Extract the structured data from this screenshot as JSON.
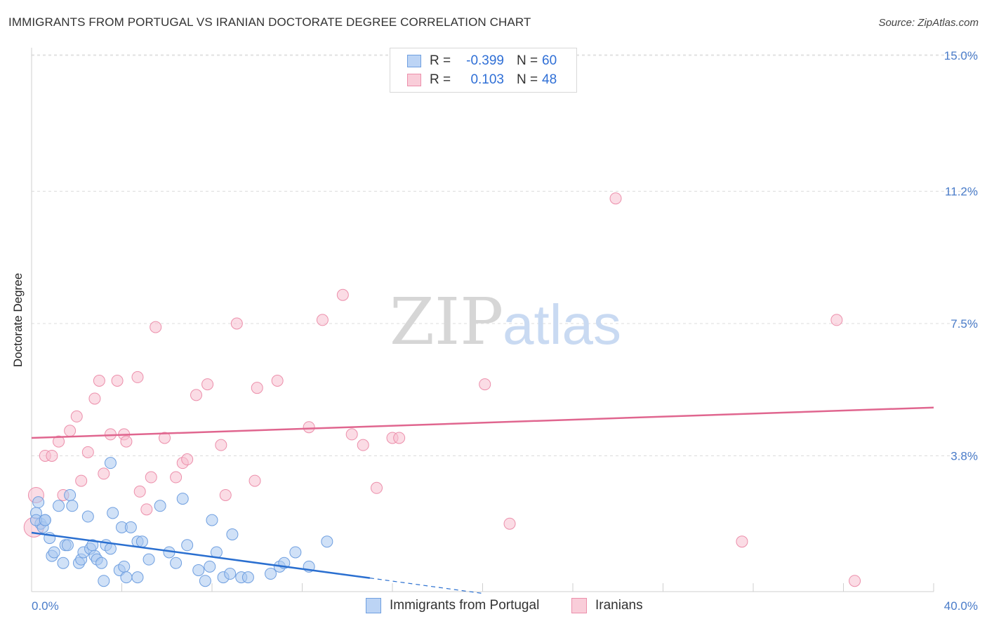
{
  "title": "IMMIGRANTS FROM PORTUGAL VS IRANIAN DOCTORATE DEGREE CORRELATION CHART",
  "source": "Source: ZipAtlas.com",
  "watermark": {
    "zip": "ZIP",
    "atlas": "atlas"
  },
  "legend": {
    "r_label": "R =",
    "n_label": "N =",
    "series1": {
      "r": "-0.399",
      "n": "60"
    },
    "series2": {
      "r": "0.103",
      "n": "48"
    }
  },
  "chart_data": {
    "type": "scatter",
    "title": "IMMIGRANTS FROM PORTUGAL VS IRANIAN DOCTORATE DEGREE CORRELATION CHART",
    "xlabel": "",
    "ylabel": "Doctorate Degree",
    "xlim": [
      0,
      40
    ],
    "ylim": [
      0,
      15.5
    ],
    "x_ticks": [
      {
        "value": 0,
        "label": "0.0%"
      },
      {
        "value": 40,
        "label": "40.0%"
      }
    ],
    "y_ticks": [
      {
        "value": 3.8,
        "label": "3.8%"
      },
      {
        "value": 7.5,
        "label": "7.5%"
      },
      {
        "value": 11.2,
        "label": "11.2%"
      },
      {
        "value": 15.0,
        "label": "15.0%"
      }
    ],
    "colors": {
      "blue_fill": "#aac8f0",
      "blue_stroke": "#6f9fe0",
      "blue_line": "#2a6fd0",
      "pink_fill": "#f7c0d0",
      "pink_stroke": "#ec8fab",
      "pink_line": "#e0668f"
    },
    "series": [
      {
        "name": "Immigrants from Portugal",
        "r": -0.399,
        "n": 60,
        "trend": {
          "x0": 0,
          "y0": 1.65,
          "x1": 15,
          "y1": 0.38,
          "dash_to_x": 20,
          "dash_to_y": -0.05
        },
        "points": [
          [
            0.2,
            2.2
          ],
          [
            0.3,
            2.5
          ],
          [
            0.4,
            1.9
          ],
          [
            0.5,
            1.8
          ],
          [
            0.6,
            2.0
          ],
          [
            0.8,
            1.5
          ],
          [
            0.9,
            1.0
          ],
          [
            1.0,
            1.1
          ],
          [
            1.2,
            2.4
          ],
          [
            1.4,
            0.8
          ],
          [
            1.5,
            1.3
          ],
          [
            1.6,
            1.3
          ],
          [
            1.7,
            2.7
          ],
          [
            1.8,
            2.4
          ],
          [
            2.1,
            0.8
          ],
          [
            2.2,
            0.9
          ],
          [
            2.3,
            1.1
          ],
          [
            2.5,
            2.1
          ],
          [
            2.6,
            1.2
          ],
          [
            2.7,
            1.3
          ],
          [
            2.8,
            1.0
          ],
          [
            2.9,
            0.9
          ],
          [
            3.1,
            0.8
          ],
          [
            3.2,
            0.3
          ],
          [
            3.3,
            1.3
          ],
          [
            3.5,
            1.2
          ],
          [
            3.5,
            3.6
          ],
          [
            3.6,
            2.2
          ],
          [
            3.9,
            0.6
          ],
          [
            4.0,
            1.8
          ],
          [
            4.1,
            0.7
          ],
          [
            4.2,
            0.4
          ],
          [
            4.4,
            1.8
          ],
          [
            4.7,
            0.4
          ],
          [
            4.7,
            1.4
          ],
          [
            4.9,
            1.4
          ],
          [
            5.2,
            0.9
          ],
          [
            5.7,
            2.4
          ],
          [
            6.1,
            1.1
          ],
          [
            6.4,
            0.8
          ],
          [
            6.7,
            2.6
          ],
          [
            6.9,
            1.3
          ],
          [
            7.4,
            0.6
          ],
          [
            7.7,
            0.3
          ],
          [
            7.9,
            0.7
          ],
          [
            8.0,
            2.0
          ],
          [
            8.2,
            1.1
          ],
          [
            8.5,
            0.4
          ],
          [
            8.8,
            0.5
          ],
          [
            8.9,
            1.6
          ],
          [
            9.3,
            0.4
          ],
          [
            9.6,
            0.4
          ],
          [
            10.6,
            0.5
          ],
          [
            11.0,
            0.7
          ],
          [
            11.2,
            0.8
          ],
          [
            11.7,
            1.1
          ],
          [
            12.3,
            0.7
          ],
          [
            13.1,
            1.4
          ],
          [
            0.2,
            2.0
          ],
          [
            0.6,
            2.0
          ]
        ]
      },
      {
        "name": "Iranians",
        "r": 0.103,
        "n": 48,
        "trend": {
          "x0": 0,
          "y0": 4.3,
          "x1": 40,
          "y1": 5.15
        },
        "points": [
          [
            0.2,
            2.7
          ],
          [
            0.1,
            1.8
          ],
          [
            0.6,
            3.8
          ],
          [
            0.9,
            3.8
          ],
          [
            1.2,
            4.2
          ],
          [
            1.4,
            2.7
          ],
          [
            1.7,
            4.5
          ],
          [
            2.0,
            4.9
          ],
          [
            2.2,
            3.1
          ],
          [
            2.5,
            3.9
          ],
          [
            2.8,
            5.4
          ],
          [
            3.0,
            5.9
          ],
          [
            3.2,
            3.3
          ],
          [
            3.5,
            4.4
          ],
          [
            3.8,
            5.9
          ],
          [
            4.1,
            4.4
          ],
          [
            4.2,
            4.2
          ],
          [
            4.7,
            6.0
          ],
          [
            4.8,
            2.8
          ],
          [
            5.1,
            2.3
          ],
          [
            5.3,
            3.2
          ],
          [
            5.5,
            7.4
          ],
          [
            5.9,
            4.3
          ],
          [
            6.4,
            3.2
          ],
          [
            6.7,
            3.6
          ],
          [
            6.9,
            3.7
          ],
          [
            7.3,
            5.5
          ],
          [
            7.8,
            5.8
          ],
          [
            8.4,
            4.1
          ],
          [
            8.6,
            2.7
          ],
          [
            9.1,
            7.5
          ],
          [
            9.9,
            3.1
          ],
          [
            10.0,
            5.7
          ],
          [
            10.9,
            5.9
          ],
          [
            12.3,
            4.6
          ],
          [
            12.9,
            7.6
          ],
          [
            13.8,
            8.3
          ],
          [
            14.2,
            4.4
          ],
          [
            14.7,
            4.1
          ],
          [
            15.3,
            2.9
          ],
          [
            16.0,
            4.3
          ],
          [
            16.3,
            4.3
          ],
          [
            20.1,
            5.8
          ],
          [
            21.2,
            1.9
          ],
          [
            25.9,
            11.0
          ],
          [
            31.5,
            1.4
          ],
          [
            35.7,
            7.6
          ],
          [
            36.5,
            0.3
          ]
        ]
      }
    ]
  }
}
